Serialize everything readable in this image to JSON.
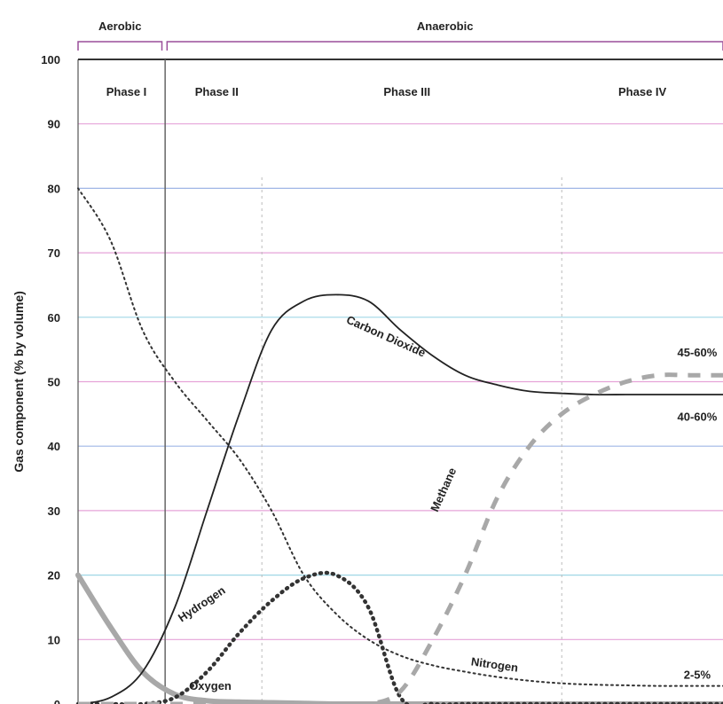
{
  "chart_data": {
    "type": "line",
    "title": "",
    "xlabel": "",
    "ylabel": "Gas component (% by volume)",
    "ylim": [
      0,
      100
    ],
    "y_ticks": [
      0,
      10,
      20,
      30,
      40,
      50,
      60,
      70,
      80,
      90,
      100
    ],
    "x": [
      0,
      5,
      10,
      15,
      20,
      25,
      30,
      35,
      40,
      45,
      50,
      55,
      60,
      65,
      70,
      75,
      80,
      85,
      90,
      95,
      100
    ],
    "xlim": [
      0,
      100
    ],
    "grid": true,
    "brackets": [
      {
        "label": "Aerobic",
        "from": 0,
        "to": 13
      },
      {
        "label": "Anaerobic",
        "from": 13.8,
        "to": 100
      }
    ],
    "phases": [
      {
        "label": "Phase I",
        "x": 7.5,
        "boundary": 13.5
      },
      {
        "label": "Phase II",
        "x": 21.5,
        "boundary": 28.5
      },
      {
        "label": "Phase III",
        "x": 51,
        "boundary": 75
      },
      {
        "label": "Phase IV",
        "x": 87.5,
        "boundary": null
      }
    ],
    "series": [
      {
        "name": "Nitrogen",
        "style": "dotted-thin",
        "color": "#333333",
        "values": [
          80,
          72,
          58,
          50,
          44,
          38,
          30,
          20,
          14,
          10,
          7.5,
          6,
          5,
          4.2,
          3.6,
          3.2,
          3,
          2.9,
          2.8,
          2.8,
          2.8
        ],
        "label_value": "2-5%"
      },
      {
        "name": "Oxygen",
        "style": "solid-thick",
        "color": "#a8a8a8",
        "values": [
          20,
          12,
          5,
          1.5,
          0.5,
          0.3,
          0.2,
          0.1,
          0,
          0,
          0,
          0,
          0,
          0,
          0,
          0,
          0,
          0,
          0,
          0,
          0
        ]
      },
      {
        "name": "Hydrogen",
        "style": "dotted-thick",
        "color": "#333333",
        "values": [
          0,
          0,
          0,
          1,
          5,
          11,
          16,
          19.5,
          20,
          15,
          1,
          0,
          0,
          0,
          0,
          0,
          0,
          0,
          0,
          0,
          0
        ]
      },
      {
        "name": "Carbon Dioxide",
        "style": "solid-thin",
        "color": "#222222",
        "values": [
          0,
          1,
          5,
          15,
          30,
          45,
          58,
          62.5,
          63.5,
          62.5,
          58,
          54,
          51,
          49.5,
          48.5,
          48.2,
          48,
          48,
          48,
          48,
          48
        ],
        "label_value": "40-60%"
      },
      {
        "name": "Methane",
        "style": "dashed-thick",
        "color": "#a8a8a8",
        "values": [
          0,
          0,
          0,
          0,
          0,
          0,
          0,
          0,
          0,
          0,
          2,
          10,
          20,
          32,
          40,
          45,
          48,
          50,
          51,
          51,
          51
        ],
        "label_value": "45-60%"
      }
    ]
  }
}
